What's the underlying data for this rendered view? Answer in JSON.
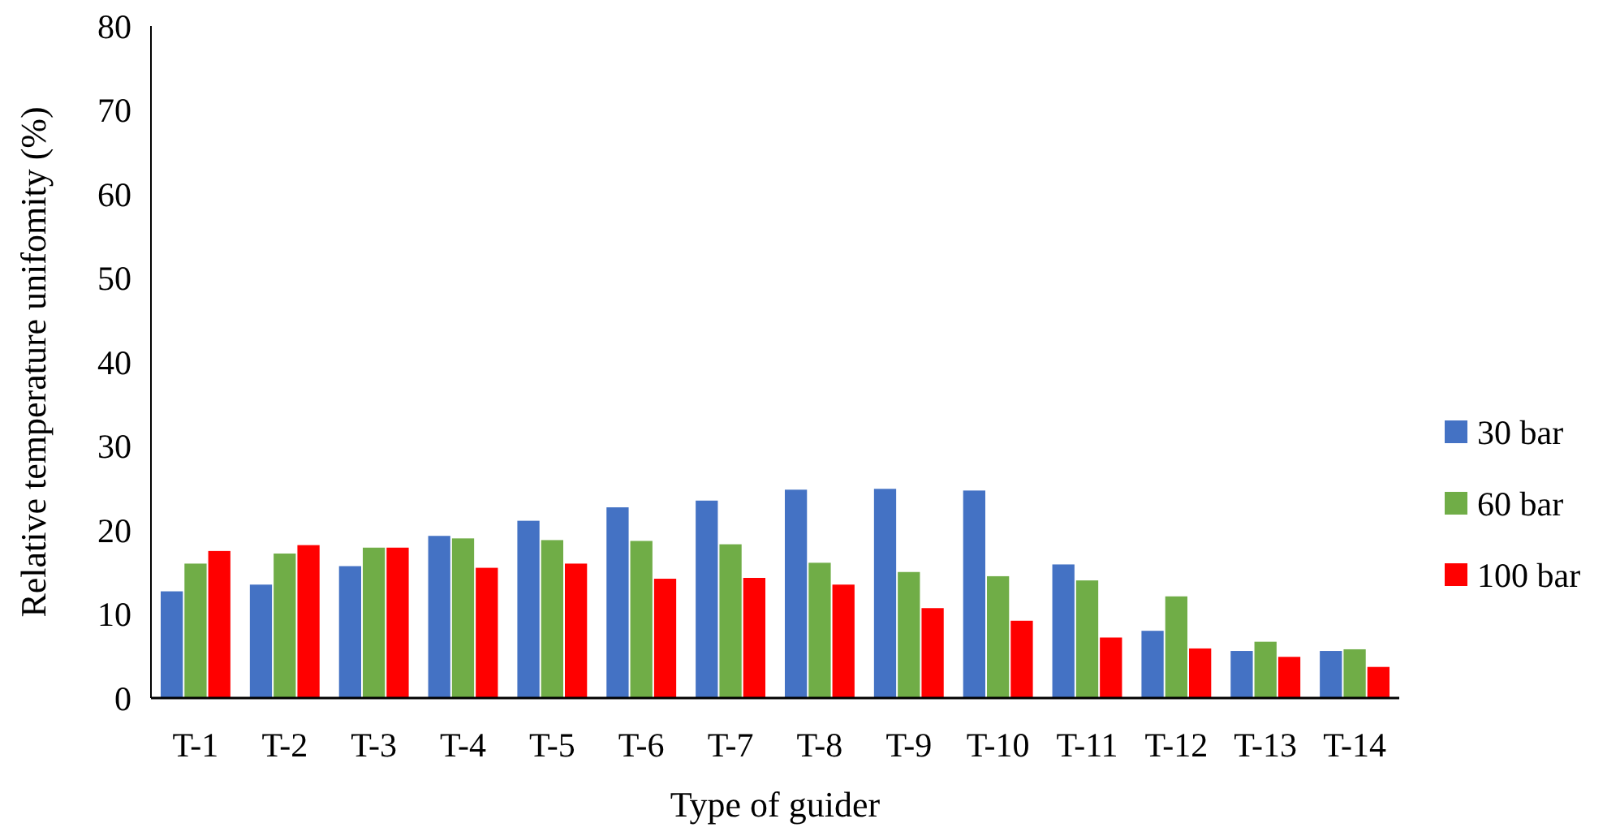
{
  "chart_data": {
    "type": "bar",
    "xlabel": "Type of guider",
    "ylabel": "Relative temperature unifomity (%)",
    "categories": [
      "T-1",
      "T-2",
      "T-3",
      "T-4",
      "T-5",
      "T-6",
      "T-7",
      "T-8",
      "T-9",
      "T-10",
      "T-11",
      "T-12",
      "T-13",
      "T-14"
    ],
    "series": [
      {
        "name": "30 bar",
        "color": "#4472c4",
        "values": [
          12.7,
          13.5,
          15.7,
          19.3,
          21.1,
          22.7,
          23.5,
          24.8,
          24.9,
          24.7,
          15.9,
          8.0,
          5.6,
          5.6
        ]
      },
      {
        "name": "60 bar",
        "color": "#70ad47",
        "values": [
          16.0,
          17.2,
          17.9,
          19.0,
          18.8,
          18.7,
          18.3,
          16.1,
          15.0,
          14.5,
          14.0,
          12.1,
          6.7,
          5.8
        ]
      },
      {
        "name": "100 bar",
        "color": "#ff0000",
        "values": [
          17.5,
          18.2,
          17.9,
          15.5,
          16.0,
          14.2,
          14.3,
          13.5,
          10.7,
          9.2,
          7.2,
          5.9,
          4.9,
          3.7
        ]
      }
    ],
    "ylim": [
      0,
      80
    ],
    "yticks": [
      0,
      10,
      20,
      30,
      40,
      50,
      60,
      70,
      80
    ],
    "grid": false,
    "legend": "right"
  }
}
